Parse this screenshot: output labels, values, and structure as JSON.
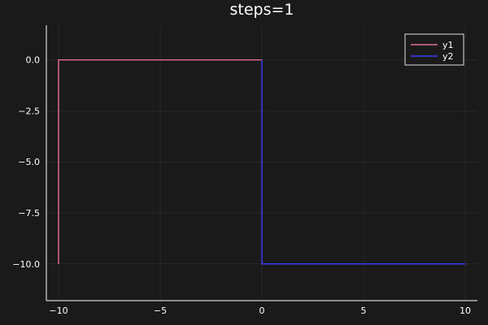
{
  "chart_data": {
    "type": "line",
    "title": "steps=1",
    "xlabel": "",
    "ylabel": "",
    "xlim": [
      -10.6,
      10.6
    ],
    "ylim": [
      -11.8,
      1.7
    ],
    "x_ticks": [
      -10,
      -5,
      0,
      5,
      10
    ],
    "x_tick_labels": [
      "−10",
      "−5",
      "0",
      "5",
      "10"
    ],
    "y_ticks": [
      0,
      -2.5,
      -5,
      -7.5,
      -10
    ],
    "y_tick_labels": [
      "0.0",
      "−2.5",
      "−5.0",
      "−7.5",
      "−10.0"
    ],
    "grid": true,
    "legend_position": "top-right",
    "series": [
      {
        "name": "y1",
        "color": "#e26f8e",
        "x": [
          -10,
          -10,
          0
        ],
        "y": [
          -10,
          0,
          0
        ]
      },
      {
        "name": "y2",
        "color": "#3c3cff",
        "x": [
          0,
          0,
          10
        ],
        "y": [
          0,
          -10,
          -10
        ]
      }
    ]
  },
  "colors": {
    "background": "#1a1a1a",
    "axis": "#ffffff",
    "grid": "#ffffff"
  }
}
